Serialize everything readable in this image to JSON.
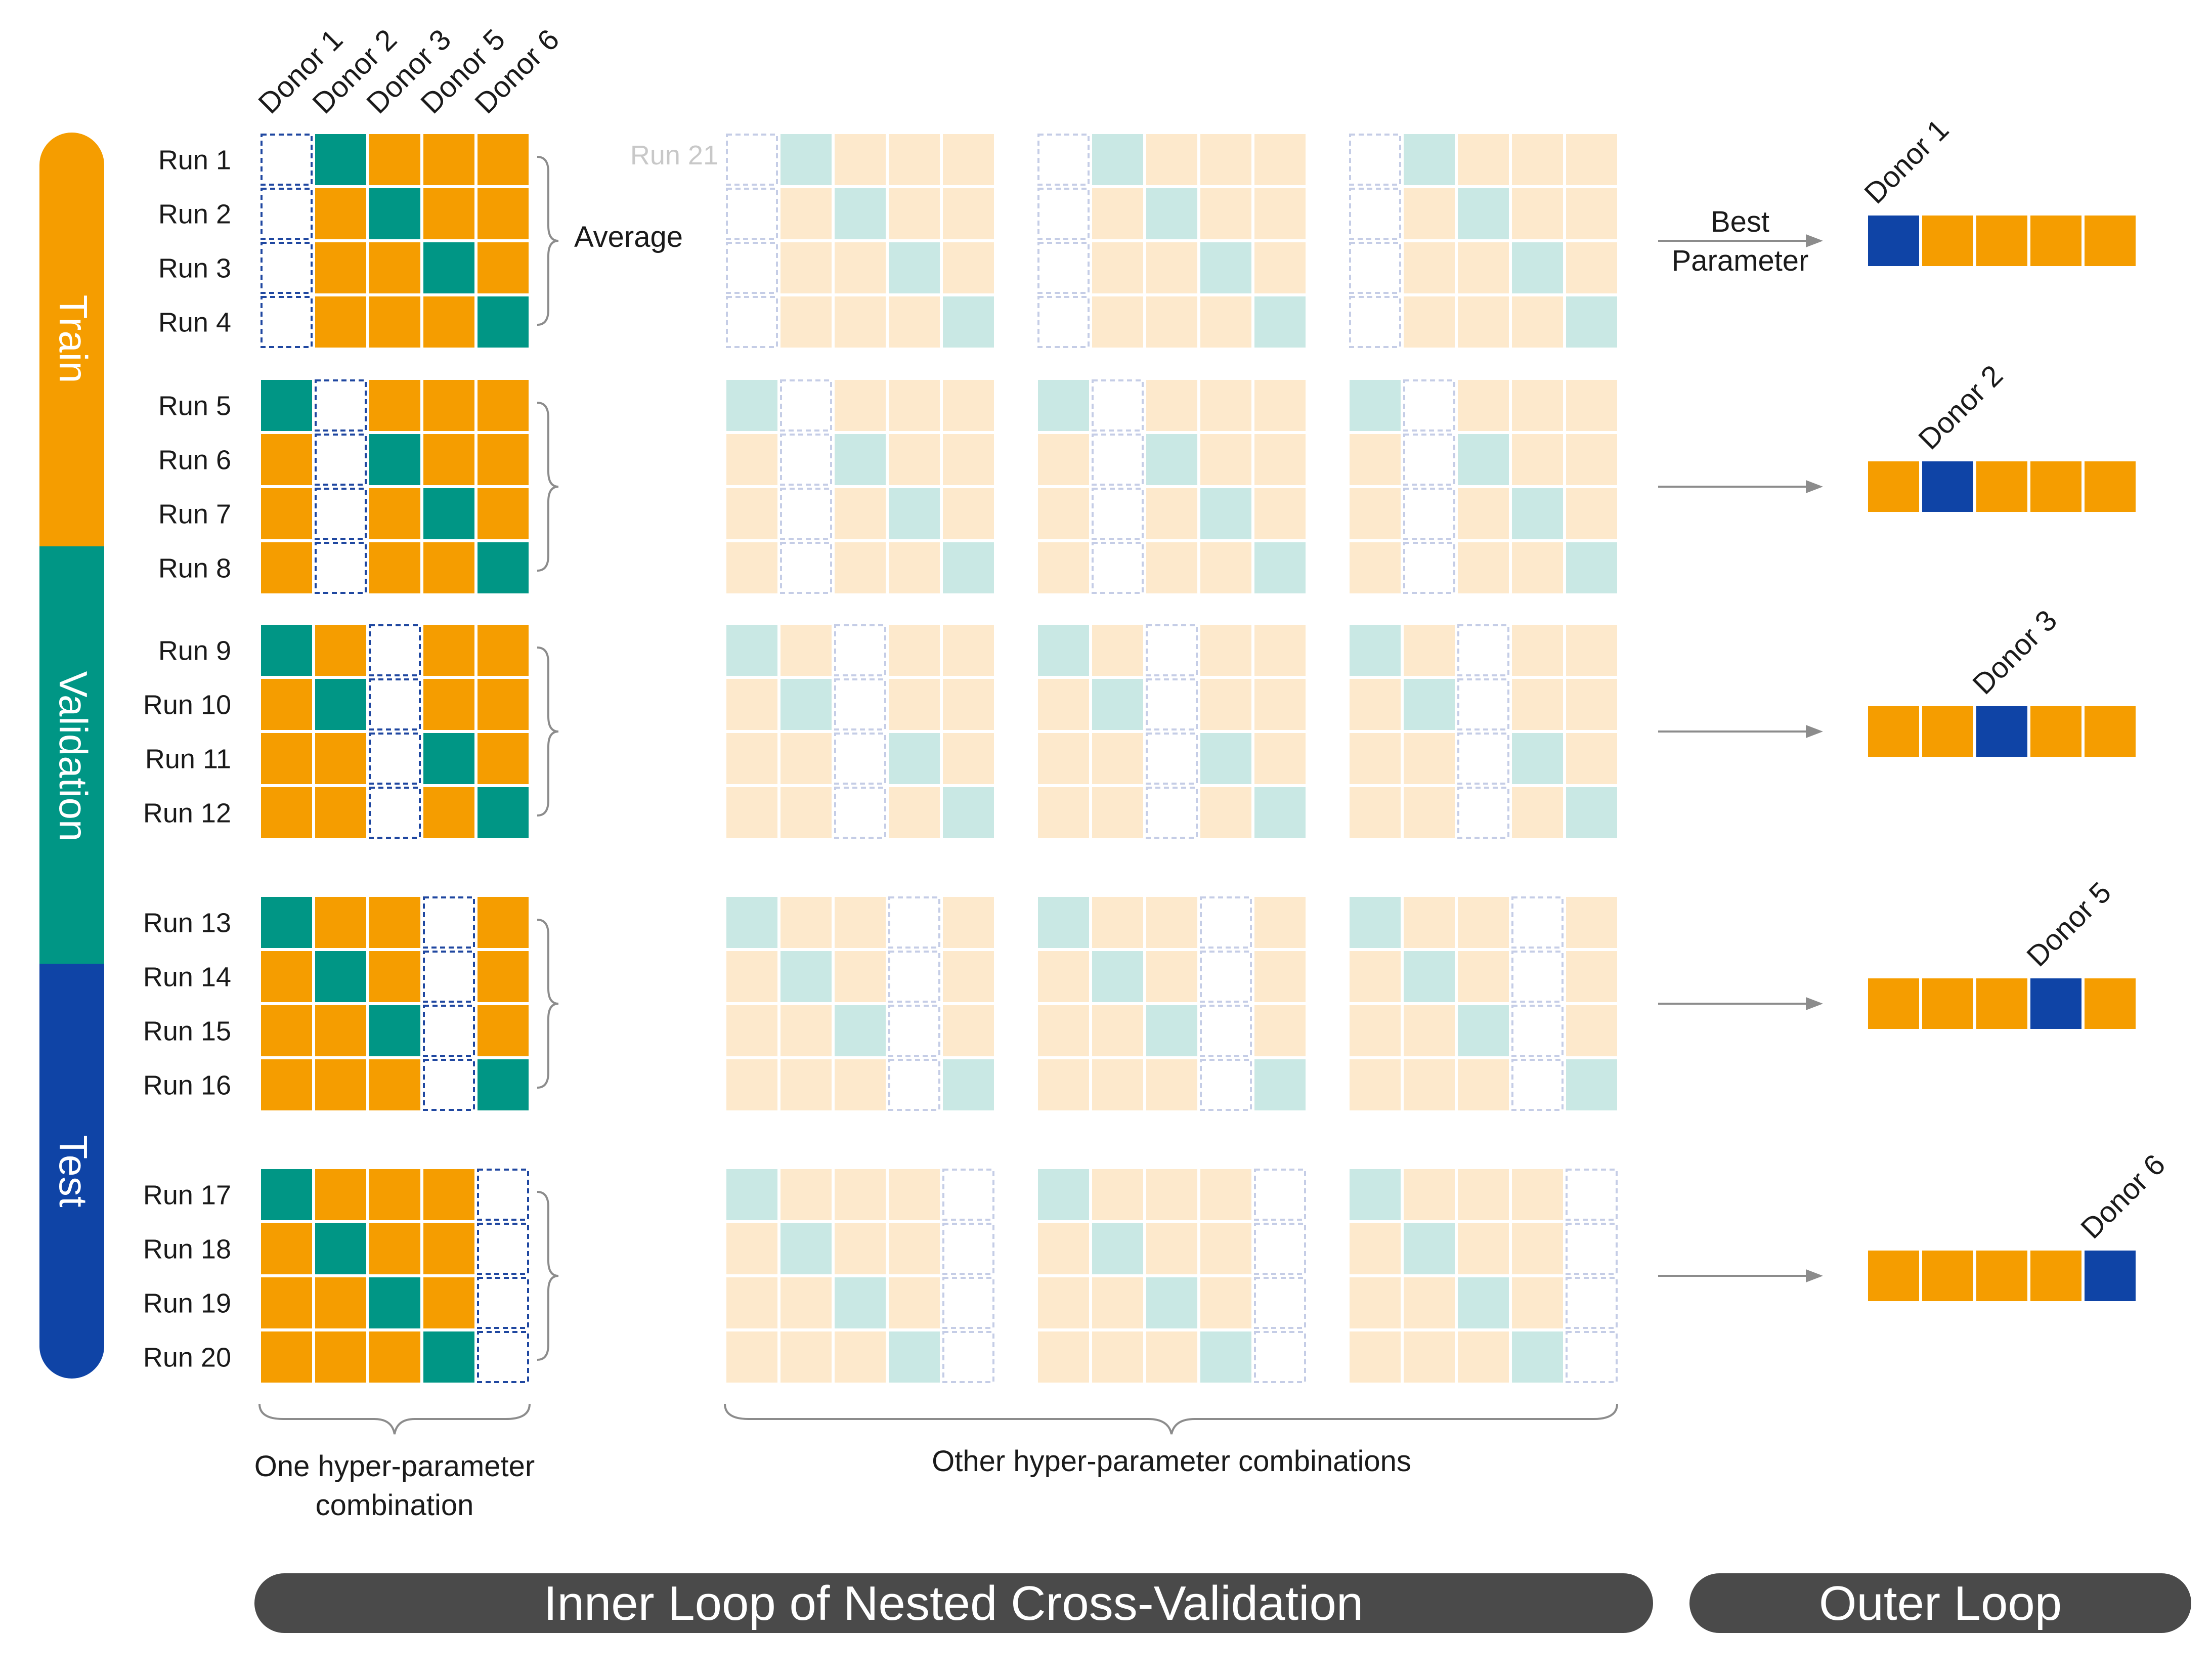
{
  "legend": {
    "train": "Train",
    "validation": "Validation",
    "test": "Test"
  },
  "donors": [
    "Donor 1",
    "Donor 2",
    "Donor 3",
    "Donor 5",
    "Donor 6"
  ],
  "runs": [
    "Run 1",
    "Run 2",
    "Run 3",
    "Run 4",
    "Run 5",
    "Run 6",
    "Run 7",
    "Run 8",
    "Run 9",
    "Run 10",
    "Run 11",
    "Run 12",
    "Run 13",
    "Run 14",
    "Run 15",
    "Run 16",
    "Run 17",
    "Run 18",
    "Run 19",
    "Run 20"
  ],
  "faded_run_label": "Run 21",
  "average_label": "Average",
  "best_parameter": {
    "line1": "Best",
    "line2": "Parameter"
  },
  "outer_donor_labels": [
    "Donor 1",
    "Donor 2",
    "Donor 3",
    "Donor 5",
    "Donor 6"
  ],
  "captions": {
    "one_combo_line1": "One hyper-parameter",
    "one_combo_line2": "combination",
    "other_combos": "Other hyper-parameter combinations"
  },
  "bottom_bars": {
    "inner": "Inner Loop of Nested Cross-Validation",
    "outer": "Outer Loop"
  },
  "colors": {
    "train": "#F59D00",
    "validation": "#009685",
    "test": "#0F44A6",
    "train_faded": "#FDE9CC",
    "validation_faded": "#C9E8E4",
    "dashed_border": "#1F47A0",
    "dashed_border_faded": "#C5CDE6",
    "bar_gray": "#4A4A4A",
    "arrow_gray": "#8C8C8C"
  }
}
